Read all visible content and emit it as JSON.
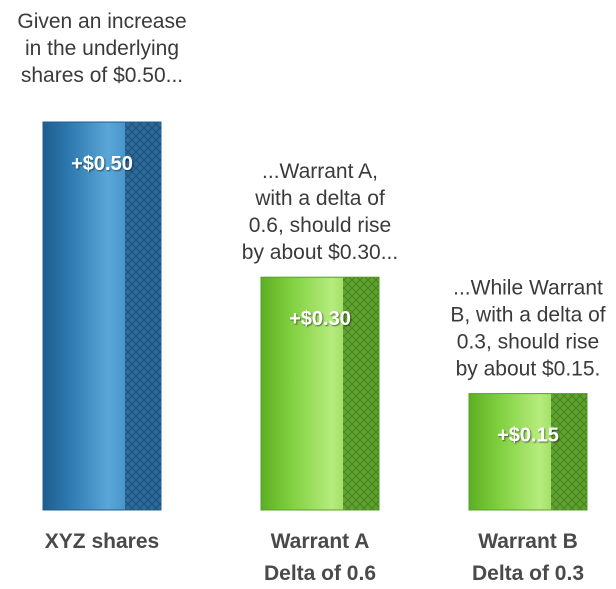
{
  "chart_data": {
    "type": "bar",
    "categories": [
      [
        "XYZ shares"
      ],
      [
        "Warrant A",
        "Delta of 0.6"
      ],
      [
        "Warrant B",
        "Delta of 0.3"
      ]
    ],
    "values": [
      0.5,
      0.3,
      0.15
    ],
    "data_labels": [
      "+$0.50",
      "+$0.30",
      "+$0.15"
    ],
    "annotations": [
      [
        "Given an increase",
        "in the underlying",
        "shares of $0.50..."
      ],
      [
        "...Warrant A,",
        "with a delta of",
        "0.6, should rise",
        "by about $0.30..."
      ],
      [
        "...While Warrant",
        "B, with a delta of",
        "0.3, should rise",
        "by about $0.15."
      ]
    ],
    "bar_colors": [
      "#2f7db5",
      "#7fcf3f",
      "#7fcf3f"
    ],
    "title": "",
    "xlabel": "",
    "ylabel": "",
    "grid": false
  }
}
